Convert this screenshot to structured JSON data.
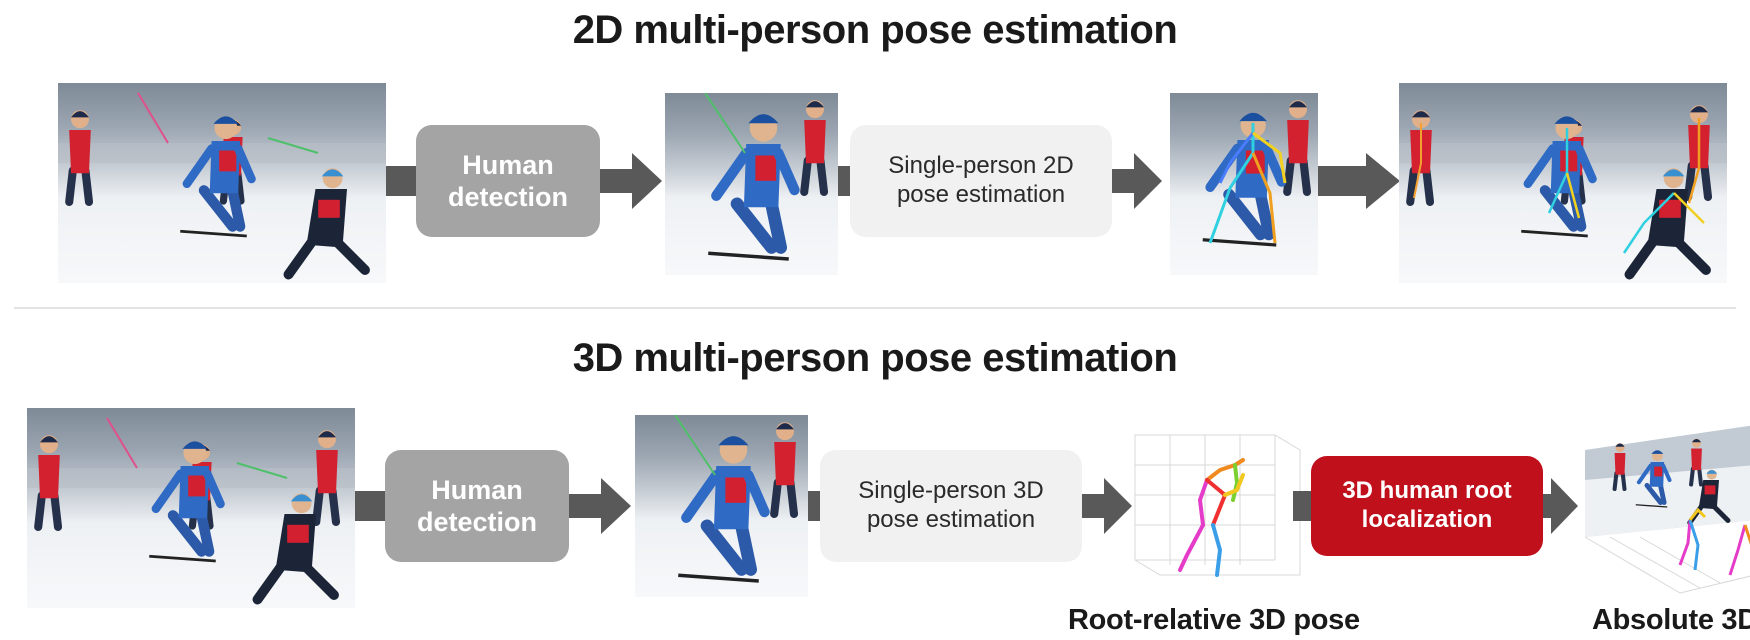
{
  "top_row": {
    "title": "2D multi-person pose estimation",
    "detection_label": "Human\ndetection",
    "pose_label": "Single-person 2D\npose estimation"
  },
  "bottom_row": {
    "title": "3D multi-person pose estimation",
    "detection_label": "Human\ndetection",
    "pose_label": "Single-person 3D\npose estimation",
    "root_label": "3D human root\nlocalization",
    "caption_root_relative": "Root-relative 3D pose",
    "caption_absolute": "Absolute 3D"
  },
  "colors": {
    "detection_box": "#a4a4a4",
    "pose_box": "#f1f1f1",
    "root_box": "#c0101b",
    "arrow": "#595959",
    "divider": "#e4e4e4"
  }
}
